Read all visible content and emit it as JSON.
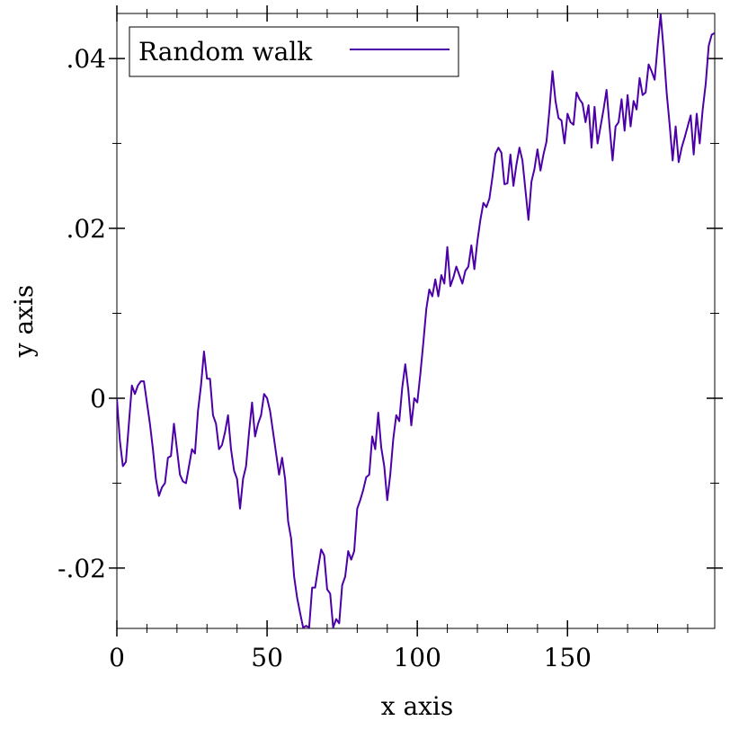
{
  "chart_data": {
    "type": "line",
    "xlabel": "x axis",
    "ylabel": "y axis",
    "xlim": [
      0,
      199
    ],
    "ylim": [
      -0.0271,
      0.0453
    ],
    "xticks": [
      0,
      50,
      100,
      150
    ],
    "yticks": [
      {
        "value": -0.02,
        "label": "-.02"
      },
      0,
      {
        "value": 0.02,
        "label": ".02"
      },
      {
        "value": 0.04,
        "label": ".04"
      }
    ],
    "xminor": [
      10,
      20,
      30,
      40,
      60,
      70,
      80,
      90,
      110,
      120,
      130,
      140,
      160,
      170,
      180,
      190
    ],
    "yminor": [
      -0.01,
      0.01,
      0.03
    ],
    "legend": "top-left",
    "x": [
      0,
      1,
      2,
      3,
      4,
      5,
      6,
      7,
      8,
      9,
      10,
      11,
      12,
      13,
      14,
      15,
      16,
      17,
      18,
      19,
      20,
      21,
      22,
      23,
      24,
      25,
      26,
      27,
      28,
      29,
      30,
      31,
      32,
      33,
      34,
      35,
      36,
      37,
      38,
      39,
      40,
      41,
      42,
      43,
      44,
      45,
      46,
      47,
      48,
      49,
      50,
      51,
      52,
      53,
      54,
      55,
      56,
      57,
      58,
      59,
      60,
      61,
      62,
      63,
      64,
      65,
      66,
      67,
      68,
      69,
      70,
      71,
      72,
      73,
      74,
      75,
      76,
      77,
      78,
      79,
      80,
      81,
      82,
      83,
      84,
      85,
      86,
      87,
      88,
      89,
      90,
      91,
      92,
      93,
      94,
      95,
      96,
      97,
      98,
      99,
      100,
      101,
      102,
      103,
      104,
      105,
      106,
      107,
      108,
      109,
      110,
      111,
      112,
      113,
      114,
      115,
      116,
      117,
      118,
      119,
      120,
      121,
      122,
      123,
      124,
      125,
      126,
      127,
      128,
      129,
      130,
      131,
      132,
      133,
      134,
      135,
      136,
      137,
      138,
      139,
      140,
      141,
      142,
      143,
      144,
      145,
      146,
      147,
      148,
      149,
      150,
      151,
      152,
      153,
      154,
      155,
      156,
      157,
      158,
      159,
      160,
      161,
      162,
      163,
      164,
      165,
      166,
      167,
      168,
      169,
      170,
      171,
      172,
      173,
      174,
      175,
      176,
      177,
      178,
      179,
      180,
      181,
      182,
      183,
      184,
      185,
      186,
      187,
      188,
      189,
      190,
      191,
      192,
      193,
      194,
      195,
      196,
      197,
      198,
      199
    ],
    "series": [
      {
        "name": "Random walk",
        "color": "#4b00a8",
        "values": [
          0.0,
          -0.005,
          -0.008,
          -0.0075,
          -0.003,
          0.0015,
          0.0005,
          0.0015,
          0.002,
          0.002,
          -0.0005,
          -0.003,
          -0.006,
          -0.0095,
          -0.0115,
          -0.0105,
          -0.01,
          -0.007,
          -0.0068,
          -0.003,
          -0.006,
          -0.009,
          -0.0098,
          -0.01,
          -0.008,
          -0.006,
          -0.0065,
          -0.0015,
          0.0015,
          0.0055,
          0.0023,
          0.0023,
          -0.002,
          -0.003,
          -0.006,
          -0.0055,
          -0.004,
          -0.002,
          -0.006,
          -0.0085,
          -0.0095,
          -0.013,
          -0.0095,
          -0.008,
          -0.004,
          -0.0005,
          -0.0045,
          -0.003,
          -0.002,
          0.0005,
          0.0,
          -0.0015,
          -0.004,
          -0.0065,
          -0.009,
          -0.007,
          -0.0095,
          -0.0145,
          -0.0165,
          -0.021,
          -0.0235,
          -0.0253,
          -0.027,
          -0.0268,
          -0.027,
          -0.0223,
          -0.0223,
          -0.02,
          -0.0178,
          -0.0185,
          -0.0225,
          -0.023,
          -0.027,
          -0.026,
          -0.0265,
          -0.022,
          -0.021,
          -0.018,
          -0.019,
          -0.018,
          -0.013,
          -0.012,
          -0.0108,
          -0.0093,
          -0.009,
          -0.0045,
          -0.006,
          -0.0017,
          -0.0058,
          -0.008,
          -0.012,
          -0.009,
          -0.0048,
          -0.002,
          -0.0027,
          0.0013,
          0.004,
          0.001,
          -0.0032,
          0.0,
          -0.0005,
          0.0028,
          0.0065,
          0.0105,
          0.0128,
          0.012,
          0.014,
          0.012,
          0.0145,
          0.0135,
          0.0178,
          0.0132,
          0.0142,
          0.0155,
          0.0145,
          0.0135,
          0.015,
          0.0155,
          0.018,
          0.0152,
          0.0185,
          0.021,
          0.023,
          0.0225,
          0.0235,
          0.026,
          0.0288,
          0.0295,
          0.0289,
          0.0252,
          0.0253,
          0.0287,
          0.025,
          0.0275,
          0.0295,
          0.028,
          0.0245,
          0.021,
          0.0255,
          0.027,
          0.0293,
          0.0268,
          0.0287,
          0.0302,
          0.034,
          0.0385,
          0.035,
          0.033,
          0.0327,
          0.03,
          0.0335,
          0.0325,
          0.0322,
          0.036,
          0.0352,
          0.0347,
          0.0325,
          0.0345,
          0.0295,
          0.0343,
          0.03,
          0.032,
          0.034,
          0.0363,
          0.032,
          0.028,
          0.032,
          0.0325,
          0.0352,
          0.0315,
          0.0357,
          0.032,
          0.035,
          0.034,
          0.0377,
          0.0357,
          0.036,
          0.0393,
          0.0385,
          0.0375,
          0.0415,
          0.0452,
          0.041,
          0.036,
          0.0322,
          0.028,
          0.032,
          0.0278,
          0.0295,
          0.0307,
          0.032,
          0.0333,
          0.0287,
          0.0335,
          0.03,
          0.034,
          0.037,
          0.0415,
          0.0428,
          0.043
        ]
      }
    ]
  }
}
